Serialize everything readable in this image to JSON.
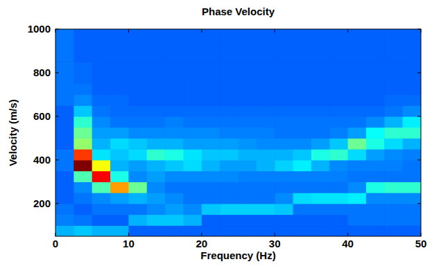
{
  "chart_data": {
    "type": "heatmap",
    "title": "Phase Velocity",
    "x_label": "Frequency (Hz)",
    "y_label": "Velocity (m/s)",
    "xlim": [
      0,
      50
    ],
    "ylim": [
      50,
      1000
    ],
    "xticks": [
      0,
      10,
      20,
      30,
      40,
      50
    ],
    "yticks": [
      200,
      400,
      600,
      800,
      1000
    ],
    "zlim": [
      0,
      1
    ],
    "x_bins": [
      0,
      2.5,
      5,
      7.5,
      10,
      12.5,
      15,
      17.5,
      20,
      22.5,
      25,
      27.5,
      30,
      32.5,
      35,
      37.5,
      40,
      42.5,
      45,
      47.5,
      50
    ],
    "y_bins": [
      50,
      100,
      150,
      200,
      250,
      300,
      350,
      400,
      450,
      500,
      550,
      600,
      650,
      700,
      750,
      800,
      850,
      900,
      950,
      1000
    ],
    "cells": [
      [
        0.3,
        0.32,
        0.3,
        0.3,
        0.22,
        0.22,
        0.22,
        0.22,
        0.22,
        0.22,
        0.22,
        0.22,
        0.22,
        0.22,
        0.22,
        0.22,
        0.22,
        0.22,
        0.22,
        0.22
      ],
      [
        0.25,
        0.24,
        0.22,
        0.22,
        0.3,
        0.32,
        0.32,
        0.3,
        0.22,
        0.22,
        0.22,
        0.22,
        0.22,
        0.22,
        0.22,
        0.22,
        0.24,
        0.24,
        0.24,
        0.24
      ],
      [
        0.24,
        0.22,
        0.24,
        0.24,
        0.24,
        0.26,
        0.28,
        0.26,
        0.32,
        0.33,
        0.33,
        0.33,
        0.32,
        0.24,
        0.24,
        0.24,
        0.24,
        0.24,
        0.24,
        0.24
      ],
      [
        0.22,
        0.24,
        0.26,
        0.28,
        0.3,
        0.28,
        0.26,
        0.24,
        0.24,
        0.24,
        0.24,
        0.24,
        0.26,
        0.34,
        0.35,
        0.35,
        0.36,
        0.26,
        0.26,
        0.26
      ],
      [
        0.22,
        0.26,
        0.45,
        0.72,
        0.48,
        0.26,
        0.24,
        0.24,
        0.24,
        0.24,
        0.24,
        0.24,
        0.24,
        0.24,
        0.24,
        0.24,
        0.26,
        0.4,
        0.42,
        0.42
      ],
      [
        0.22,
        0.45,
        0.88,
        0.4,
        0.26,
        0.28,
        0.26,
        0.26,
        0.26,
        0.26,
        0.25,
        0.25,
        0.25,
        0.25,
        0.25,
        0.25,
        0.24,
        0.24,
        0.24,
        0.24
      ],
      [
        0.24,
        1.0,
        0.62,
        0.3,
        0.28,
        0.3,
        0.32,
        0.34,
        0.3,
        0.28,
        0.28,
        0.3,
        0.33,
        0.36,
        0.3,
        0.26,
        0.25,
        0.25,
        0.25,
        0.24
      ],
      [
        0.24,
        0.82,
        0.35,
        0.32,
        0.34,
        0.42,
        0.4,
        0.35,
        0.32,
        0.32,
        0.3,
        0.3,
        0.3,
        0.32,
        0.4,
        0.42,
        0.34,
        0.28,
        0.26,
        0.25
      ],
      [
        0.22,
        0.52,
        0.3,
        0.34,
        0.32,
        0.3,
        0.3,
        0.28,
        0.28,
        0.28,
        0.27,
        0.26,
        0.26,
        0.26,
        0.28,
        0.32,
        0.48,
        0.4,
        0.34,
        0.3
      ],
      [
        0.22,
        0.48,
        0.28,
        0.28,
        0.26,
        0.26,
        0.26,
        0.26,
        0.26,
        0.25,
        0.25,
        0.25,
        0.24,
        0.24,
        0.24,
        0.25,
        0.28,
        0.38,
        0.42,
        0.42
      ],
      [
        0.22,
        0.42,
        0.26,
        0.24,
        0.24,
        0.24,
        0.25,
        0.24,
        0.24,
        0.24,
        0.24,
        0.24,
        0.24,
        0.24,
        0.24,
        0.24,
        0.24,
        0.26,
        0.3,
        0.36
      ],
      [
        0.22,
        0.32,
        0.24,
        0.23,
        0.23,
        0.23,
        0.23,
        0.23,
        0.23,
        0.23,
        0.23,
        0.23,
        0.23,
        0.23,
        0.23,
        0.23,
        0.23,
        0.23,
        0.24,
        0.26
      ],
      [
        0.24,
        0.26,
        0.23,
        0.23,
        0.22,
        0.22,
        0.22,
        0.22,
        0.22,
        0.22,
        0.22,
        0.22,
        0.22,
        0.22,
        0.22,
        0.22,
        0.22,
        0.22,
        0.23,
        0.23
      ],
      [
        0.24,
        0.24,
        0.22,
        0.22,
        0.22,
        0.22,
        0.22,
        0.22,
        0.22,
        0.22,
        0.22,
        0.22,
        0.22,
        0.22,
        0.22,
        0.22,
        0.22,
        0.22,
        0.22,
        0.22
      ],
      [
        0.24,
        0.23,
        0.22,
        0.22,
        0.22,
        0.22,
        0.22,
        0.22,
        0.22,
        0.22,
        0.22,
        0.22,
        0.22,
        0.22,
        0.22,
        0.22,
        0.22,
        0.22,
        0.22,
        0.22
      ],
      [
        0.24,
        0.23,
        0.22,
        0.22,
        0.22,
        0.22,
        0.22,
        0.22,
        0.22,
        0.22,
        0.22,
        0.22,
        0.22,
        0.22,
        0.22,
        0.22,
        0.22,
        0.22,
        0.22,
        0.22
      ],
      [
        0.24,
        0.22,
        0.22,
        0.22,
        0.22,
        0.22,
        0.22,
        0.22,
        0.22,
        0.22,
        0.22,
        0.22,
        0.22,
        0.22,
        0.22,
        0.22,
        0.22,
        0.22,
        0.22,
        0.22
      ],
      [
        0.24,
        0.22,
        0.22,
        0.22,
        0.22,
        0.22,
        0.22,
        0.22,
        0.22,
        0.22,
        0.22,
        0.22,
        0.22,
        0.22,
        0.22,
        0.22,
        0.22,
        0.22,
        0.22,
        0.22
      ],
      [
        0.24,
        0.22,
        0.22,
        0.22,
        0.22,
        0.22,
        0.22,
        0.22,
        0.22,
        0.22,
        0.22,
        0.22,
        0.22,
        0.22,
        0.22,
        0.22,
        0.22,
        0.22,
        0.22,
        0.22
      ]
    ]
  }
}
